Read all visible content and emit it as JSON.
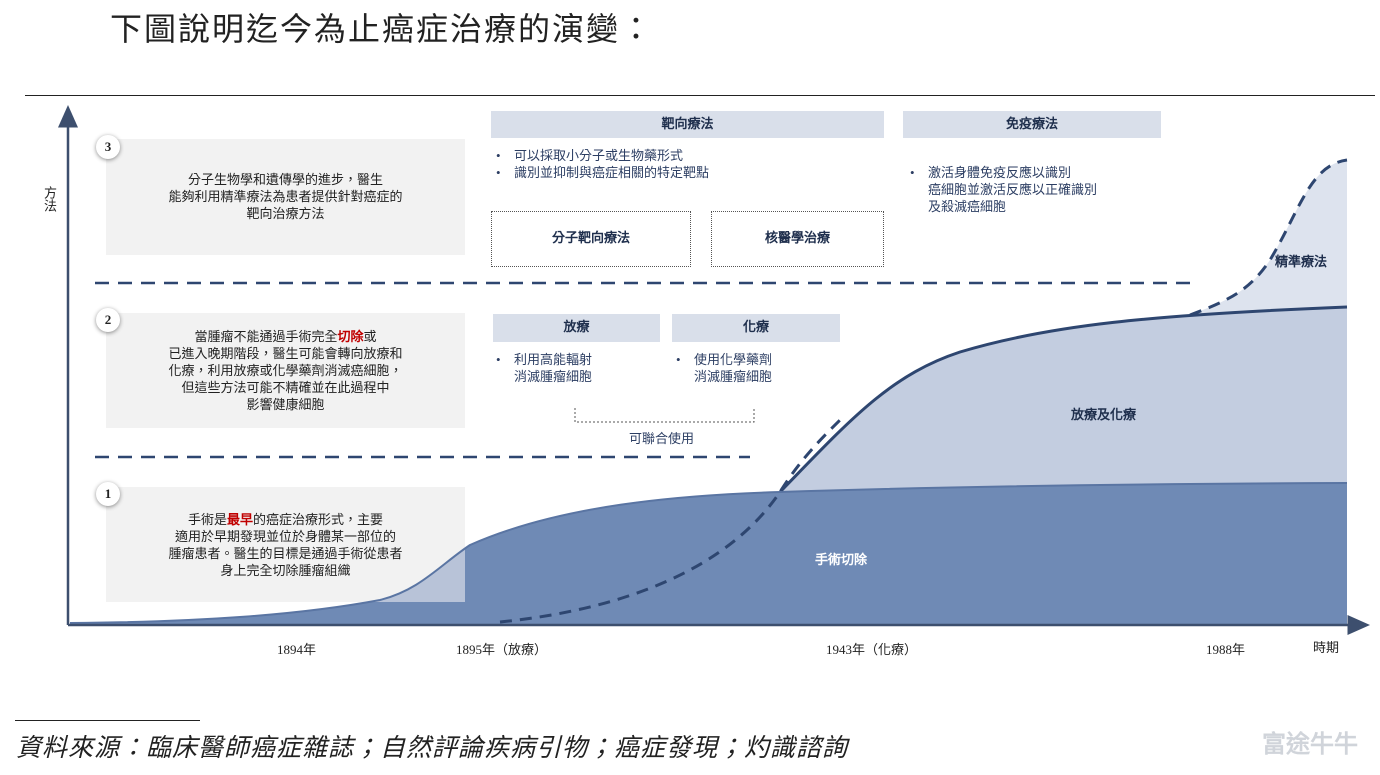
{
  "header": {
    "title": "下圖說明迄今為止癌症治療的演變："
  },
  "axes": {
    "y_label": "方法",
    "x_label": "時期",
    "x_ticks": [
      "1894年",
      "1895年（放療）",
      "1943年（化療）",
      "1988年"
    ]
  },
  "levels": [
    {
      "number": "3",
      "lines": [
        [
          "分子生物學和遺傳學的進步，醫生"
        ],
        [
          "能夠利用精準療法為患者提供針對癌症的"
        ],
        [
          "靶向治療方法"
        ]
      ]
    },
    {
      "number": "2",
      "lines": [
        [
          "當腫瘤不能通過手術完全",
          {
            "text": "切除",
            "emphasis": true
          },
          "或"
        ],
        [
          "已進入晚期階段，醫生可能會轉向放療和"
        ],
        [
          "化療，利用放療或化學藥劑消滅癌細胞，"
        ],
        [
          "但這些方法可能不精確並在此過程中"
        ],
        [
          "影響健康細胞"
        ]
      ]
    },
    {
      "number": "1",
      "lines": [
        [
          "手術是",
          {
            "text": "最早",
            "emphasis": true
          },
          "的癌症治療形式，主要"
        ],
        [
          "適用於早期發現並位於身體某一部位的"
        ],
        [
          "腫瘤患者。醫生的目標是通過手術從患者"
        ],
        [
          "身上完全切除腫瘤組織"
        ]
      ]
    }
  ],
  "targeted": {
    "title": "靶向療法",
    "bullets": [
      [
        "可以採取小分子或生物藥形式"
      ],
      [
        "識別並抑制與癌症相關的特定靶點"
      ]
    ],
    "boxes": [
      "分子靶向療法",
      "核醫學治療"
    ]
  },
  "immunotherapy": {
    "title": "免疫療法",
    "bullets": [
      [
        "激活身體免疫反應以識別",
        "癌細胞並激活反應以正確識別",
        "及殺滅癌細胞"
      ]
    ]
  },
  "radiotherapy": {
    "title": "放療",
    "bullets": [
      [
        "利用高能輻射",
        "消滅腫瘤細胞"
      ]
    ]
  },
  "chemotherapy": {
    "title": "化療",
    "bullets": [
      [
        "使用化學藥劑",
        "消滅腫瘤細胞"
      ]
    ]
  },
  "combined": "可聯合使用",
  "areas": {
    "precision": "精準療法",
    "radio_chemo": "放療及化療",
    "surgery": "手術切除"
  },
  "footer": {
    "source": "資料來源：臨床醫師癌症雜誌；自然評論疾病引物；癌症發現；灼識諮詢"
  },
  "watermark": "富途牛牛"
}
